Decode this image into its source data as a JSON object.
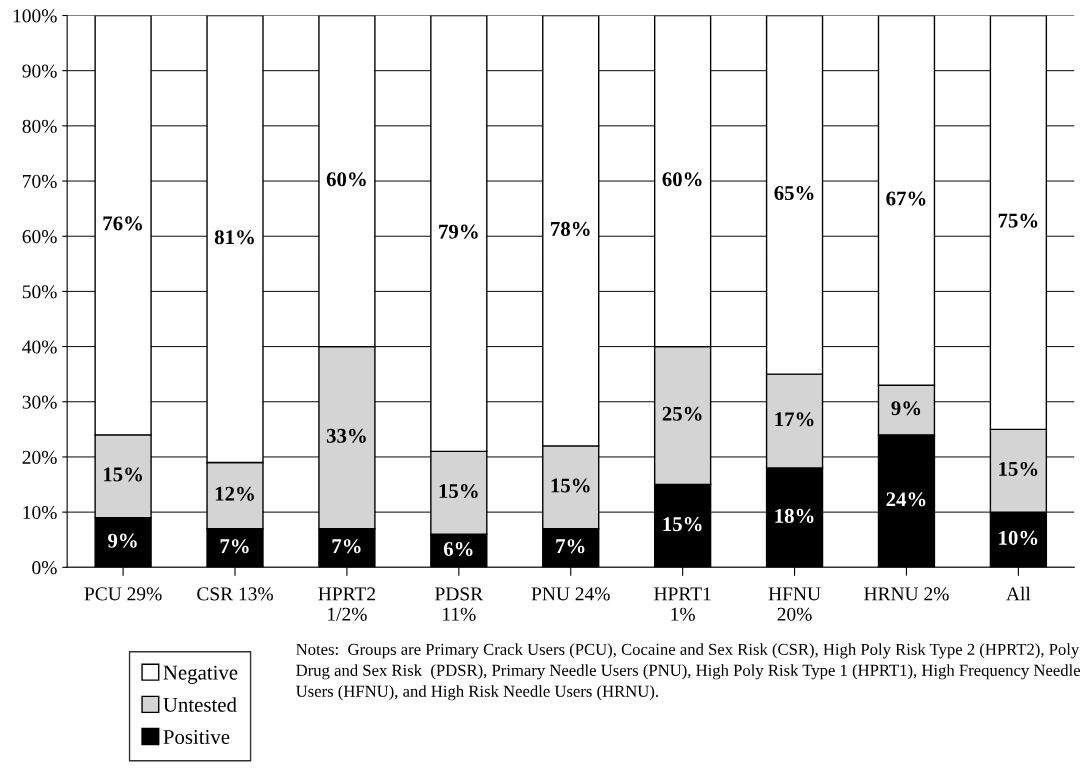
{
  "chart_data": {
    "type": "bar",
    "stacked": true,
    "categories": [
      "PCU 29%",
      "CSR 13%",
      "HPRT2\n1/2%",
      "PDSR\n11%",
      "PNU 24%",
      "HPRT1\n1%",
      "HFNU\n20%",
      "HRNU 2%",
      "All"
    ],
    "series": [
      {
        "name": "Positive",
        "color": "#000000",
        "values": [
          9,
          7,
          7,
          6,
          7,
          15,
          18,
          24,
          10
        ],
        "value_labels": [
          "9%",
          "7%",
          "7%",
          "6%",
          "7%",
          "15%",
          "18%",
          "24%",
          "10%"
        ]
      },
      {
        "name": "Untested",
        "color": "#d4d4d4",
        "values": [
          15,
          12,
          33,
          15,
          15,
          25,
          17,
          9,
          15
        ],
        "value_labels": [
          "15%",
          "12%",
          "33%",
          "15%",
          "15%",
          "25%",
          "17%",
          "9%",
          "15%"
        ]
      },
      {
        "name": "Negative",
        "color": "#ffffff",
        "values": [
          76,
          81,
          60,
          79,
          78,
          60,
          65,
          67,
          75
        ],
        "value_labels": [
          "76%",
          "81%",
          "60%",
          "79%",
          "78%",
          "60%",
          "65%",
          "67%",
          "75%"
        ]
      }
    ],
    "ylim": [
      0,
      100
    ],
    "yticks": [
      {
        "value": 0,
        "label": "0%"
      },
      {
        "value": 10,
        "label": "10%"
      },
      {
        "value": 20,
        "label": "20%"
      },
      {
        "value": 30,
        "label": "30%"
      },
      {
        "value": 40,
        "label": "40%"
      },
      {
        "value": 50,
        "label": "50%"
      },
      {
        "value": 60,
        "label": "60%"
      },
      {
        "value": 70,
        "label": "70%"
      },
      {
        "value": 80,
        "label": "80%"
      },
      {
        "value": 90,
        "label": "90%"
      },
      {
        "value": 100,
        "label": "100%"
      }
    ],
    "grid": "y",
    "legend": "bottom left",
    "annotations": [
      "Notes:  Groups are Primary Crack Users (PCU), Cocaine and Sex Risk (CSR), High Poly Risk Type 2 (HPRT2), Poly Drug and Sex Risk  (PDSR), Primary Needle Users (PNU), High Poly Risk Type 1 (HPRT1), High Frequency Needle Users (HFNU), and High Risk Needle Users (HRNU)."
    ]
  }
}
